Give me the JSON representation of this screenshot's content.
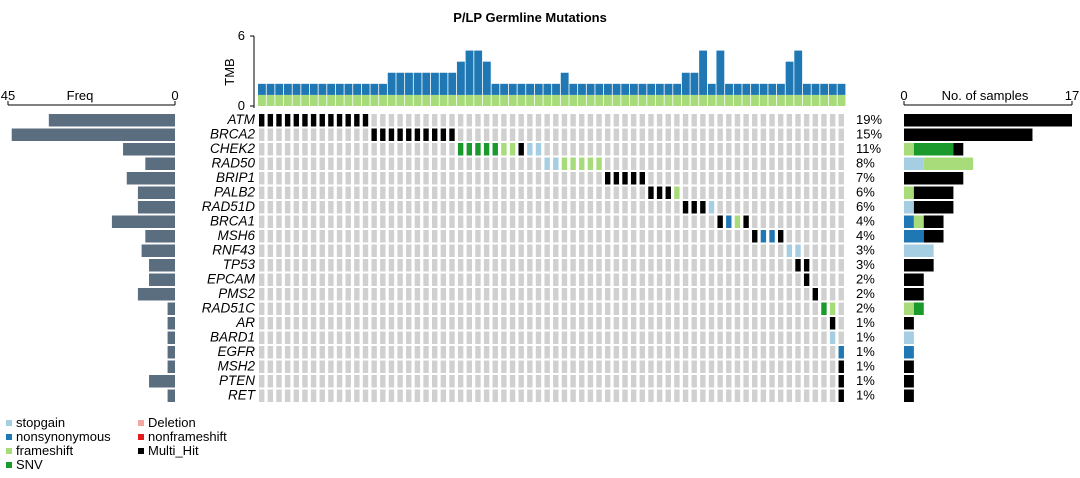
{
  "chart_data": {
    "type": "oncoplot",
    "title": "P/LP Germline Mutations",
    "n_samples": 68,
    "tmb": {
      "label": "TMB",
      "ticks": [
        "6",
        "0"
      ],
      "ylim": [
        0,
        6
      ],
      "stacks": [
        [
          1,
          1
        ],
        [
          1,
          1
        ],
        [
          1,
          1
        ],
        [
          1,
          1
        ],
        [
          1,
          1
        ],
        [
          1,
          1
        ],
        [
          1,
          1
        ],
        [
          1,
          1
        ],
        [
          1,
          1
        ],
        [
          1,
          1
        ],
        [
          1,
          1
        ],
        [
          1,
          1
        ],
        [
          1,
          1
        ],
        [
          1,
          1
        ],
        [
          1,
          1
        ],
        [
          1,
          2
        ],
        [
          1,
          2
        ],
        [
          1,
          2
        ],
        [
          1,
          2
        ],
        [
          1,
          2
        ],
        [
          1,
          2
        ],
        [
          1,
          2
        ],
        [
          1,
          2
        ],
        [
          1,
          3
        ],
        [
          1,
          4
        ],
        [
          1,
          4
        ],
        [
          1,
          3
        ],
        [
          1,
          1
        ],
        [
          1,
          1
        ],
        [
          1,
          1
        ],
        [
          1,
          1
        ],
        [
          1,
          1
        ],
        [
          1,
          1
        ],
        [
          1,
          1
        ],
        [
          1,
          1
        ],
        [
          1,
          2
        ],
        [
          1,
          1
        ],
        [
          1,
          1
        ],
        [
          1,
          1
        ],
        [
          1,
          1
        ],
        [
          1,
          1
        ],
        [
          1,
          1
        ],
        [
          1,
          1
        ],
        [
          1,
          1
        ],
        [
          1,
          1
        ],
        [
          1,
          1
        ],
        [
          1,
          1
        ],
        [
          1,
          1
        ],
        [
          1,
          1
        ],
        [
          1,
          2
        ],
        [
          1,
          2
        ],
        [
          1,
          4
        ],
        [
          1,
          1
        ],
        [
          1,
          4
        ],
        [
          1,
          1
        ],
        [
          1,
          1
        ],
        [
          1,
          1
        ],
        [
          1,
          1
        ],
        [
          1,
          1
        ],
        [
          1,
          1
        ],
        [
          1,
          1
        ],
        [
          1,
          3
        ],
        [
          1,
          4
        ],
        [
          1,
          1
        ],
        [
          1,
          1
        ],
        [
          1,
          1
        ],
        [
          1,
          1
        ],
        [
          1,
          1
        ]
      ]
    },
    "genes": [
      "ATM",
      "BRCA2",
      "CHEK2",
      "RAD50",
      "BRIP1",
      "PALB2",
      "RAD51D",
      "BRCA1",
      "MSH6",
      "RNF43",
      "TP53",
      "EPCAM",
      "PMS2",
      "RAD51C",
      "AR",
      "BARD1",
      "EGFR",
      "MSH2",
      "PTEN",
      "RET"
    ],
    "percentages": [
      "19%",
      "15%",
      "11%",
      "8%",
      "7%",
      "6%",
      "6%",
      "4%",
      "4%",
      "3%",
      "3%",
      "2%",
      "2%",
      "2%",
      "1%",
      "1%",
      "1%",
      "1%",
      "1%",
      "1%"
    ],
    "mutations": [
      {
        "gene": 0,
        "start": 0,
        "count": 13,
        "type": "Multi_Hit"
      },
      {
        "gene": 1,
        "start": 13,
        "count": 10,
        "type": "Multi_Hit"
      },
      {
        "gene": 2,
        "start": 23,
        "count": 5,
        "type": "SNV"
      },
      {
        "gene": 2,
        "start": 28,
        "count": 2,
        "type": "frameshift"
      },
      {
        "gene": 2,
        "start": 30,
        "count": 1,
        "type": "Multi_Hit"
      },
      {
        "gene": 2,
        "start": 31,
        "count": 2,
        "type": "stopgain"
      },
      {
        "gene": 3,
        "start": 33,
        "count": 2,
        "type": "stopgain"
      },
      {
        "gene": 3,
        "start": 35,
        "count": 5,
        "type": "frameshift"
      },
      {
        "gene": 4,
        "start": 40,
        "count": 5,
        "type": "Multi_Hit"
      },
      {
        "gene": 5,
        "start": 45,
        "count": 3,
        "type": "Multi_Hit"
      },
      {
        "gene": 5,
        "start": 48,
        "count": 1,
        "type": "frameshift"
      },
      {
        "gene": 6,
        "start": 49,
        "count": 3,
        "type": "Multi_Hit"
      },
      {
        "gene": 6,
        "start": 52,
        "count": 1,
        "type": "stopgain"
      },
      {
        "gene": 7,
        "start": 53,
        "count": 1,
        "type": "Multi_Hit"
      },
      {
        "gene": 7,
        "start": 54,
        "count": 1,
        "type": "nonsynonymous"
      },
      {
        "gene": 7,
        "start": 55,
        "count": 1,
        "type": "frameshift"
      },
      {
        "gene": 7,
        "start": 56,
        "count": 1,
        "type": "Multi_Hit"
      },
      {
        "gene": 8,
        "start": 57,
        "count": 1,
        "type": "Multi_Hit"
      },
      {
        "gene": 8,
        "start": 58,
        "count": 2,
        "type": "nonsynonymous"
      },
      {
        "gene": 8,
        "start": 60,
        "count": 1,
        "type": "Multi_Hit"
      },
      {
        "gene": 9,
        "start": 61,
        "count": 2,
        "type": "stopgain"
      },
      {
        "gene": 10,
        "start": 62,
        "count": 2,
        "type": "Multi_Hit"
      },
      {
        "gene": 11,
        "start": 63,
        "count": 1,
        "type": "Multi_Hit"
      },
      {
        "gene": 12,
        "start": 64,
        "count": 1,
        "type": "Multi_Hit"
      },
      {
        "gene": 13,
        "start": 65,
        "count": 1,
        "type": "SNV"
      },
      {
        "gene": 13,
        "start": 66,
        "count": 1,
        "type": "frameshift"
      },
      {
        "gene": 14,
        "start": 66,
        "count": 1,
        "type": "Multi_Hit"
      },
      {
        "gene": 15,
        "start": 66,
        "count": 1,
        "type": "stopgain"
      },
      {
        "gene": 16,
        "start": 67,
        "count": 1,
        "type": "nonsynonymous"
      },
      {
        "gene": 17,
        "start": 67,
        "count": 1,
        "type": "Multi_Hit"
      },
      {
        "gene": 18,
        "start": 67,
        "count": 1,
        "type": "Multi_Hit"
      },
      {
        "gene": 19,
        "start": 67,
        "count": 1,
        "type": "Multi_Hit"
      }
    ],
    "samples_bar": {
      "label": "No. of samples",
      "ticks": [
        "0",
        "17"
      ],
      "xlim": [
        0,
        17
      ],
      "rows": [
        [
          {
            "type": "Multi_Hit",
            "value": 17
          }
        ],
        [
          {
            "type": "Multi_Hit",
            "value": 13
          }
        ],
        [
          {
            "type": "frameshift",
            "value": 1
          },
          {
            "type": "SNV",
            "value": 4
          },
          {
            "type": "Multi_Hit",
            "value": 1
          }
        ],
        [
          {
            "type": "stopgain",
            "value": 2
          },
          {
            "type": "frameshift",
            "value": 5
          }
        ],
        [
          {
            "type": "Multi_Hit",
            "value": 6
          }
        ],
        [
          {
            "type": "frameshift",
            "value": 1
          },
          {
            "type": "Multi_Hit",
            "value": 4
          }
        ],
        [
          {
            "type": "stopgain",
            "value": 1
          },
          {
            "type": "Multi_Hit",
            "value": 4
          }
        ],
        [
          {
            "type": "nonsynonymous",
            "value": 1
          },
          {
            "type": "frameshift",
            "value": 1
          },
          {
            "type": "Multi_Hit",
            "value": 2
          }
        ],
        [
          {
            "type": "nonsynonymous",
            "value": 2
          },
          {
            "type": "Multi_Hit",
            "value": 2
          }
        ],
        [
          {
            "type": "stopgain",
            "value": 3
          }
        ],
        [
          {
            "type": "Multi_Hit",
            "value": 3
          }
        ],
        [
          {
            "type": "Multi_Hit",
            "value": 2
          }
        ],
        [
          {
            "type": "Multi_Hit",
            "value": 2
          }
        ],
        [
          {
            "type": "frameshift",
            "value": 1
          },
          {
            "type": "SNV",
            "value": 1
          }
        ],
        [
          {
            "type": "Multi_Hit",
            "value": 1
          }
        ],
        [
          {
            "type": "stopgain",
            "value": 1
          }
        ],
        [
          {
            "type": "nonsynonymous",
            "value": 1
          }
        ],
        [
          {
            "type": "Multi_Hit",
            "value": 1
          }
        ],
        [
          {
            "type": "Multi_Hit",
            "value": 1
          }
        ],
        [
          {
            "type": "Multi_Hit",
            "value": 1
          }
        ]
      ]
    },
    "freq_bar": {
      "label": "Freq",
      "ticks": [
        "45",
        "0"
      ],
      "xlim": [
        45,
        0
      ],
      "values": [
        34,
        44,
        14,
        8,
        13,
        10,
        10,
        17,
        8,
        9,
        7,
        7,
        10,
        2,
        2,
        2,
        2,
        2,
        7,
        2
      ]
    },
    "legend": {
      "column1": [
        {
          "label": "stopgain",
          "type": "stopgain"
        },
        {
          "label": "nonsynonymous",
          "type": "nonsynonymous"
        },
        {
          "label": "frameshift",
          "type": "frameshift"
        },
        {
          "label": "SNV",
          "type": "SNV"
        }
      ],
      "column2": [
        {
          "label": "Deletion",
          "type": "Deletion"
        },
        {
          "label": "nonframeshift",
          "type": "nonframeshift"
        },
        {
          "label": "Multi_Hit",
          "type": "Multi_Hit"
        }
      ]
    },
    "colors": {
      "stopgain": "#a6cee3",
      "nonsynonymous": "#1f78b4",
      "frameshift": "#a8dc7a",
      "SNV": "#1a9a2c",
      "Deletion": "#f4a6a0",
      "nonframeshift": "#e31a1c",
      "Multi_Hit": "#000000",
      "empty": "#d0d0d0",
      "freq_bar": "#5b6e80"
    }
  }
}
